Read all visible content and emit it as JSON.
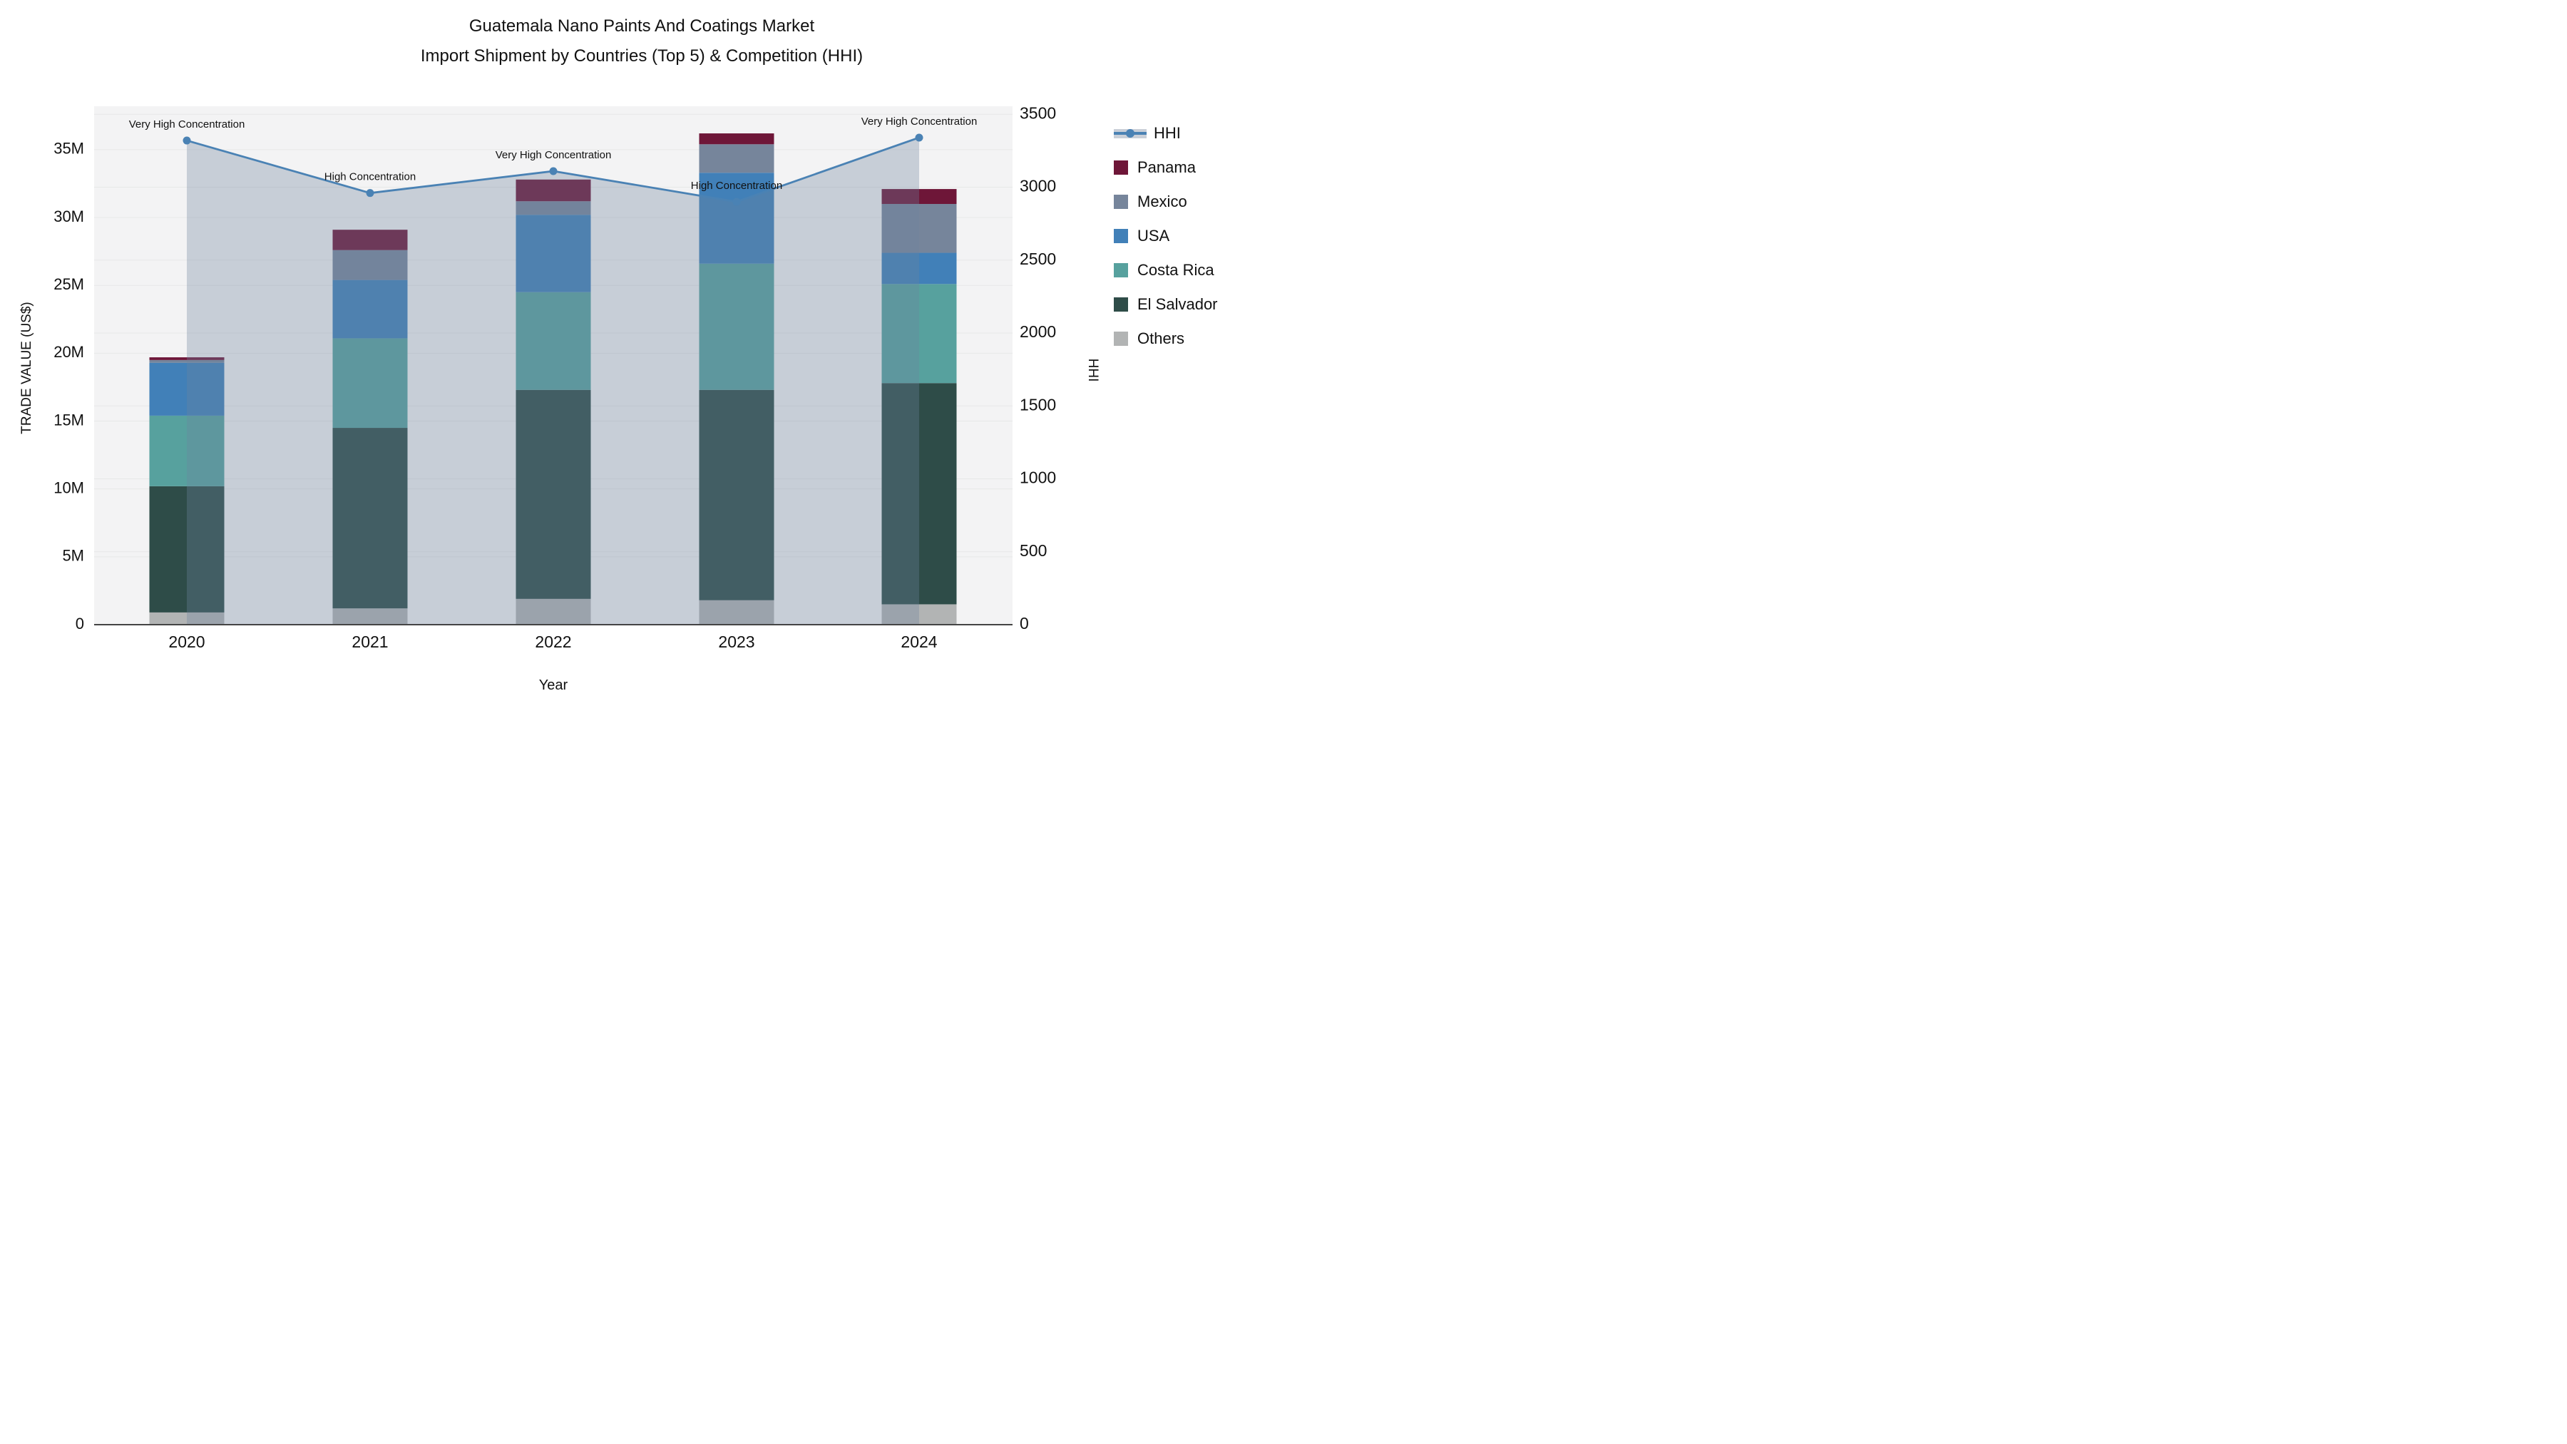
{
  "title": {
    "line1": "Guatemala Nano Paints And Coatings Market",
    "line2": "Import Shipment by Countries (Top 5) & Competition (HHI)"
  },
  "axes": {
    "left_title": "TRADE VALUE (US$)",
    "right_title": "HHI",
    "x_title": "Year"
  },
  "legend": {
    "items": [
      {
        "id": "hhi",
        "label": "HHI",
        "type": "line",
        "color": "#4a82b4",
        "band_color": "#c9cfd8"
      },
      {
        "id": "panama",
        "label": "Panama",
        "type": "swatch",
        "color": "#6e1638"
      },
      {
        "id": "mexico",
        "label": "Mexico",
        "type": "swatch",
        "color": "#76859b"
      },
      {
        "id": "usa",
        "label": "USA",
        "type": "swatch",
        "color": "#4180b8"
      },
      {
        "id": "costa-rica",
        "label": "Costa Rica",
        "type": "swatch",
        "color": "#57a19e"
      },
      {
        "id": "el-salvador",
        "label": "El Salvador",
        "type": "swatch",
        "color": "#2e4c48"
      },
      {
        "id": "others",
        "label": "Others",
        "type": "swatch",
        "color": "#b2b4b4"
      }
    ]
  },
  "chart_data": {
    "type": "bar+line",
    "title": "Guatemala Nano Paints And Coatings Market — Import Shipment by Countries (Top 5) & Competition (HHI)",
    "categories": [
      "2020",
      "2021",
      "2022",
      "2023",
      "2024"
    ],
    "bar_unit": "US$ millions",
    "bar_stack_order_bottom_to_top": [
      "Others",
      "El Salvador",
      "Costa Rica",
      "USA",
      "Mexico",
      "Panama"
    ],
    "series": [
      {
        "name": "Others",
        "color": "#b2b4b4",
        "values": [
          0.9,
          1.2,
          1.9,
          1.8,
          1.5
        ]
      },
      {
        "name": "El Salvador",
        "color": "#2e4c48",
        "values": [
          9.3,
          13.3,
          15.4,
          15.5,
          16.3
        ]
      },
      {
        "name": "Costa Rica",
        "color": "#57a19e",
        "values": [
          5.2,
          6.6,
          7.2,
          9.3,
          7.3
        ]
      },
      {
        "name": "USA",
        "color": "#4180b8",
        "values": [
          3.9,
          4.3,
          5.7,
          6.7,
          2.3
        ]
      },
      {
        "name": "Mexico",
        "color": "#76859b",
        "values": [
          0.2,
          2.2,
          1.0,
          2.1,
          3.6
        ]
      },
      {
        "name": "Panama",
        "color": "#6e1638",
        "values": [
          0.2,
          1.5,
          1.6,
          0.8,
          1.1
        ]
      }
    ],
    "bar_totals": [
      19.7,
      29.1,
      32.8,
      36.2,
      32.1
    ],
    "line_series": {
      "name": "HHI",
      "axis": "right",
      "color": "#4a82b4",
      "area_fill": "rgba(108,130,158,0.33)",
      "values": [
        3320,
        2960,
        3110,
        2900,
        3340
      ]
    },
    "annotations": [
      "Very High Concentration",
      "High Concentration",
      "Very High Concentration",
      "High Concentration",
      "Very High Concentration"
    ],
    "left_axis": {
      "label": "TRADE VALUE (US$)",
      "max": 38.2,
      "ticks": [
        {
          "v": 0,
          "label": "0"
        },
        {
          "v": 5,
          "label": "5M"
        },
        {
          "v": 10,
          "label": "10M"
        },
        {
          "v": 15,
          "label": "15M"
        },
        {
          "v": 20,
          "label": "20M"
        },
        {
          "v": 25,
          "label": "25M"
        },
        {
          "v": 30,
          "label": "30M"
        },
        {
          "v": 35,
          "label": "35M"
        }
      ]
    },
    "right_axis": {
      "label": "HHI",
      "max": 3555,
      "ticks": [
        {
          "v": 0,
          "label": "0"
        },
        {
          "v": 500,
          "label": "500"
        },
        {
          "v": 1000,
          "label": "1000"
        },
        {
          "v": 1500,
          "label": "1500"
        },
        {
          "v": 2000,
          "label": "2000"
        },
        {
          "v": 2500,
          "label": "2500"
        },
        {
          "v": 3000,
          "label": "3000"
        },
        {
          "v": 3500,
          "label": "3500"
        }
      ]
    },
    "x_axis": {
      "label": "Year"
    },
    "grid": true,
    "legend_position": "right"
  },
  "theme": {
    "fig_bg": "#ffffff",
    "plot_bg": "#f3f3f4",
    "grid_color": "#e7e8e8",
    "axis_line_color": "#444444",
    "text_color": "#111111"
  }
}
